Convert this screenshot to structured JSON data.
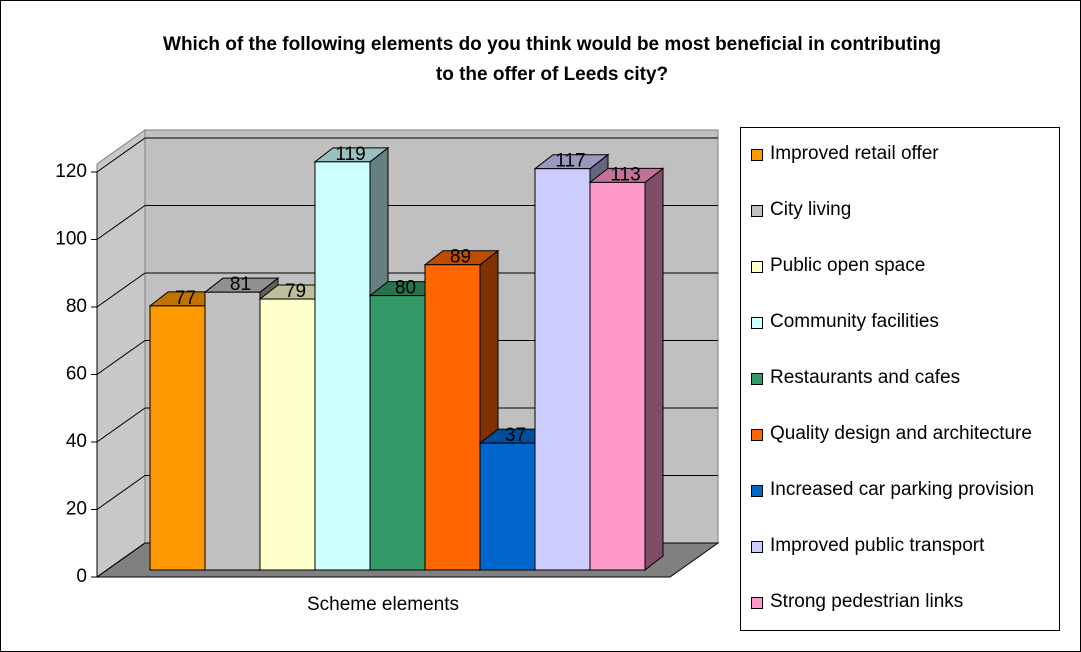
{
  "chart_data": {
    "type": "bar3d",
    "title": "Which of the following elements do you think would be most beneficial in contributing to the offer of Leeds city?",
    "x_label": "Scheme elements",
    "ylim": [
      0,
      120
    ],
    "yticks": [
      0,
      20,
      40,
      60,
      80,
      100,
      120
    ],
    "grid": true,
    "legend": "right",
    "series": [
      {
        "name": "Improved retail offer",
        "color": "#FF9900",
        "values": [
          77
        ]
      },
      {
        "name": "City living",
        "color": "#C0C0C0",
        "values": [
          81
        ]
      },
      {
        "name": "Public open space",
        "color": "#FFFFCC",
        "values": [
          79
        ]
      },
      {
        "name": "Community facilities",
        "color": "#CCFFFF",
        "values": [
          119
        ]
      },
      {
        "name": "Restaurants and cafes",
        "color": "#339966",
        "values": [
          80
        ]
      },
      {
        "name": "Quality design and architecture",
        "color": "#FF6600",
        "values": [
          89
        ]
      },
      {
        "name": "Increased car parking provision",
        "color": "#0066CC",
        "values": [
          37
        ]
      },
      {
        "name": "Improved public transport",
        "color": "#CCCCFF",
        "values": [
          117
        ]
      },
      {
        "name": "Strong pedestrian links",
        "color": "#FF99CC",
        "values": [
          113
        ]
      }
    ]
  }
}
